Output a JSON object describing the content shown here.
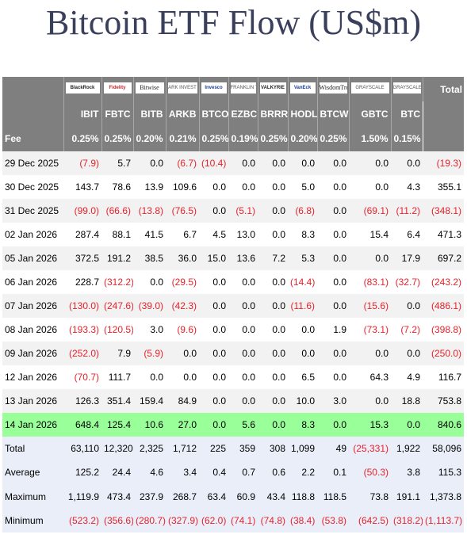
{
  "title": "Bitcoin ETF Flow (US$m)",
  "colors": {
    "header_bg": "#7f7f7f",
    "highlight_row": "#99ff99",
    "summary_bg": "#e9eef8",
    "negative": "#e8222b",
    "title": "#3a3f5c"
  },
  "header": {
    "total_label": "Total",
    "fee_label": "Fee",
    "logos": [
      "BlackRock",
      "Fidelity",
      "Bitwise",
      "ARK INVEST",
      "Invesco",
      "FRANKLIN TEMPLETON",
      "VALKYRIE",
      "VanEck",
      "WisdomTree",
      "GRAYSCALE",
      "GRAYSCALE"
    ],
    "tickers": [
      "IBIT",
      "FBTC",
      "BITB",
      "ARKB",
      "BTCO",
      "EZBC",
      "BRRR",
      "HODL",
      "BTCW",
      "GBTC",
      "BTC"
    ],
    "fees": [
      "0.25%",
      "0.25%",
      "0.20%",
      "0.21%",
      "0.25%",
      "0.19%",
      "0.25%",
      "0.20%",
      "0.25%",
      "1.50%",
      "0.15%"
    ]
  },
  "rows": [
    {
      "date": "29 Dec 2025",
      "values": [
        "(7.9)",
        "5.7",
        "0.0",
        "(6.7)",
        "(10.4)",
        "0.0",
        "0.0",
        "0.0",
        "0.0",
        "0.0",
        "0.0"
      ],
      "total": "(19.3)"
    },
    {
      "date": "30 Dec 2025",
      "values": [
        "143.7",
        "78.6",
        "13.9",
        "109.6",
        "0.0",
        "0.0",
        "0.0",
        "5.0",
        "0.0",
        "0.0",
        "4.3"
      ],
      "total": "355.1"
    },
    {
      "date": "31 Dec 2025",
      "values": [
        "(99.0)",
        "(66.6)",
        "(13.8)",
        "(76.5)",
        "0.0",
        "(5.1)",
        "0.0",
        "(6.8)",
        "0.0",
        "(69.1)",
        "(11.2)"
      ],
      "total": "(348.1)"
    },
    {
      "date": "02 Jan 2026",
      "values": [
        "287.4",
        "88.1",
        "41.5",
        "6.7",
        "4.5",
        "13.0",
        "0.0",
        "8.3",
        "0.0",
        "15.4",
        "6.4"
      ],
      "total": "471.3"
    },
    {
      "date": "05 Jan 2026",
      "values": [
        "372.5",
        "191.2",
        "38.5",
        "36.0",
        "15.0",
        "13.6",
        "7.2",
        "5.3",
        "0.0",
        "0.0",
        "17.9"
      ],
      "total": "697.2"
    },
    {
      "date": "06 Jan 2026",
      "values": [
        "228.7",
        "(312.2)",
        "0.0",
        "(29.5)",
        "0.0",
        "0.0",
        "0.0",
        "(14.4)",
        "0.0",
        "(83.1)",
        "(32.7)"
      ],
      "total": "(243.2)"
    },
    {
      "date": "07 Jan 2026",
      "values": [
        "(130.0)",
        "(247.6)",
        "(39.0)",
        "(42.3)",
        "0.0",
        "0.0",
        "0.0",
        "(11.6)",
        "0.0",
        "(15.6)",
        "0.0"
      ],
      "total": "(486.1)"
    },
    {
      "date": "08 Jan 2026",
      "values": [
        "(193.3)",
        "(120.5)",
        "3.0",
        "(9.6)",
        "0.0",
        "0.0",
        "0.0",
        "0.0",
        "1.9",
        "(73.1)",
        "(7.2)"
      ],
      "total": "(398.8)"
    },
    {
      "date": "09 Jan 2026",
      "values": [
        "(252.0)",
        "7.9",
        "(5.9)",
        "0.0",
        "0.0",
        "0.0",
        "0.0",
        "0.0",
        "0.0",
        "0.0",
        "0.0"
      ],
      "total": "(250.0)"
    },
    {
      "date": "12 Jan 2026",
      "values": [
        "(70.7)",
        "111.7",
        "0.0",
        "0.0",
        "0.0",
        "0.0",
        "0.0",
        "6.5",
        "0.0",
        "64.3",
        "4.9"
      ],
      "total": "116.7"
    },
    {
      "date": "13 Jan 2026",
      "values": [
        "126.3",
        "351.4",
        "159.4",
        "84.9",
        "0.0",
        "0.0",
        "0.0",
        "10.0",
        "3.0",
        "0.0",
        "18.8"
      ],
      "total": "753.8"
    },
    {
      "date": "14 Jan 2026",
      "values": [
        "648.4",
        "125.4",
        "10.6",
        "27.0",
        "0.0",
        "5.6",
        "0.0",
        "8.3",
        "0.0",
        "15.3",
        "0.0"
      ],
      "total": "840.6",
      "highlight": true
    }
  ],
  "summary": [
    {
      "label": "Total",
      "values": [
        "63,110",
        "12,320",
        "2,325",
        "1,712",
        "225",
        "359",
        "308",
        "1,099",
        "49",
        "(25,331)",
        "1,922"
      ],
      "total": "58,096"
    },
    {
      "label": "Average",
      "values": [
        "125.2",
        "24.4",
        "4.6",
        "3.4",
        "0.4",
        "0.7",
        "0.6",
        "2.2",
        "0.1",
        "(50.3)",
        "3.8"
      ],
      "total": "115.3"
    },
    {
      "label": "Maximum",
      "values": [
        "1,119.9",
        "473.4",
        "237.9",
        "268.7",
        "63.4",
        "60.9",
        "43.4",
        "118.8",
        "118.5",
        "73.8",
        "191.1"
      ],
      "total": "1,373.8"
    },
    {
      "label": "Minimum",
      "values": [
        "(523.2)",
        "(356.6)",
        "(280.7)",
        "(327.9)",
        "(62.0)",
        "(74.1)",
        "(74.8)",
        "(38.4)",
        "(53.8)",
        "(642.5)",
        "(318.2)"
      ],
      "total": "(1,113.7)"
    }
  ]
}
